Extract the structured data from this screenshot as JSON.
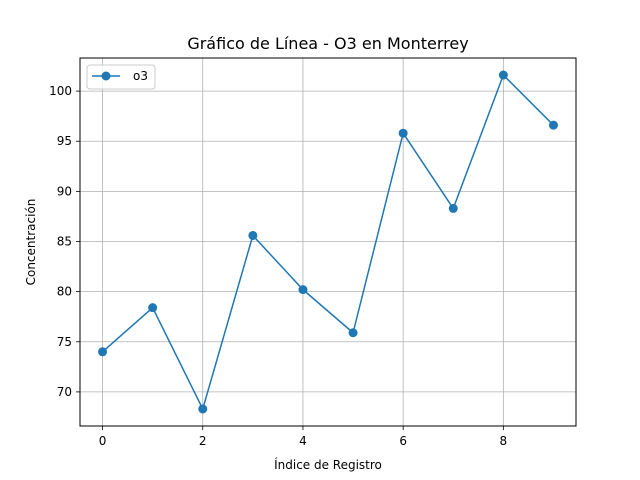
{
  "chart_data": {
    "type": "line",
    "title": "Gráfico de Línea - O3 en Monterrey",
    "xlabel": "Índice de Registro",
    "ylabel": "Concentración",
    "x": [
      0,
      1,
      2,
      3,
      4,
      5,
      6,
      7,
      8,
      9
    ],
    "series": [
      {
        "name": "o3",
        "color": "#1f77b4",
        "marker": "circle",
        "values": [
          74.0,
          78.4,
          68.3,
          85.6,
          80.2,
          75.9,
          95.8,
          88.3,
          101.6,
          96.6
        ]
      }
    ],
    "xlim": [
      -0.45,
      9.45
    ],
    "ylim": [
      66.6,
      103.3
    ],
    "xticks": [
      0,
      2,
      4,
      6,
      8
    ],
    "yticks": [
      70,
      75,
      80,
      85,
      90,
      95,
      100
    ],
    "grid": true,
    "legend_position": "top-left"
  }
}
